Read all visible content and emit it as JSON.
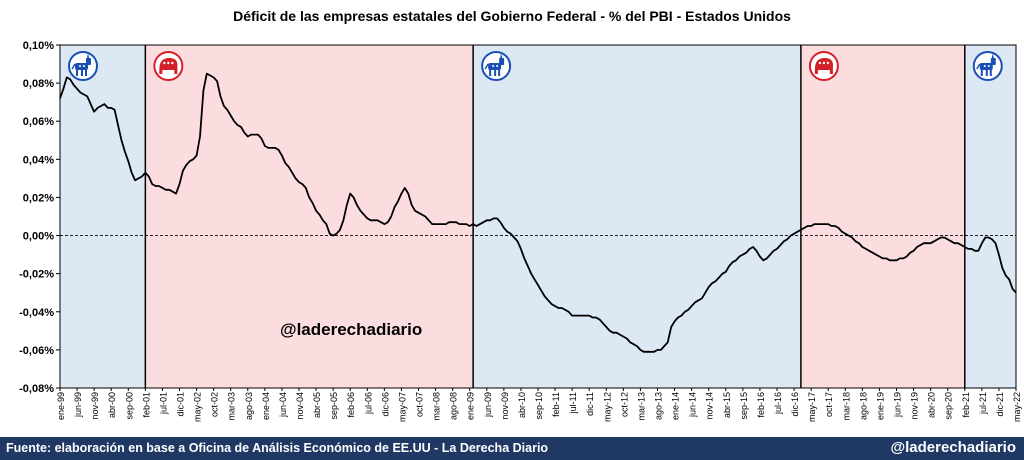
{
  "chart_data": {
    "type": "line",
    "title": "Déficit de las empresas estatales del Gobierno Federal -  % del PBI - Estados Unidos",
    "ylim": [
      -0.08,
      0.1
    ],
    "y_ticks": [
      "0,10%",
      "0,08%",
      "0,06%",
      "0,04%",
      "0,02%",
      "0,00%",
      "-0,02%",
      "-0,04%",
      "-0,06%",
      "-0,08%"
    ],
    "x_tick_labels": [
      "ene-99",
      "jun-99",
      "nov-99",
      "abr-00",
      "sep-00",
      "feb-01",
      "jul-01",
      "dic-01",
      "may-02",
      "oct-02",
      "mar-03",
      "ago-03",
      "ene-04",
      "jun-04",
      "nov-04",
      "abr-05",
      "sep-05",
      "feb-06",
      "jul-06",
      "dic-06",
      "may-07",
      "oct-07",
      "mar-08",
      "ago-08",
      "ene-09",
      "jun-09",
      "nov-09",
      "abr-10",
      "sep-10",
      "feb-11",
      "jul-11",
      "dic-11",
      "may-12",
      "oct-12",
      "mar-13",
      "ago-13",
      "ene-14",
      "jun-14",
      "nov-14",
      "abr-15",
      "sep-15",
      "feb-16",
      "jul-16",
      "dic-16",
      "may-17",
      "oct-17",
      "mar-18",
      "ago-18",
      "ene-19",
      "jun-19",
      "nov-19",
      "abr-20",
      "sep-20",
      "feb-21",
      "jul-21",
      "dic-21",
      "may-22"
    ],
    "zero_line": "dashed",
    "periods": [
      {
        "party": "democrat",
        "color": "#dce9f5",
        "start": 0,
        "end": 25,
        "icon": "donkey-icon"
      },
      {
        "party": "republican",
        "color": "#fbdde0",
        "start": 25,
        "end": 121,
        "icon": "elephant-icon"
      },
      {
        "party": "democrat",
        "color": "#dce9f5",
        "start": 121,
        "end": 217,
        "icon": "donkey-icon"
      },
      {
        "party": "republican",
        "color": "#fbdde0",
        "start": 217,
        "end": 265,
        "icon": "elephant-icon"
      },
      {
        "party": "democrat",
        "color": "#dce9f5",
        "start": 265,
        "end": 281,
        "icon": "donkey-icon"
      }
    ],
    "series": [
      {
        "color": "#000000",
        "points": [
          [
            0,
            0.072
          ],
          [
            1,
            0.077
          ],
          [
            2,
            0.083
          ],
          [
            3,
            0.082
          ],
          [
            4,
            0.079
          ],
          [
            5,
            0.077
          ],
          [
            6,
            0.075
          ],
          [
            7,
            0.074
          ],
          [
            8,
            0.073
          ],
          [
            9,
            0.069
          ],
          [
            10,
            0.065
          ],
          [
            11,
            0.067
          ],
          [
            12,
            0.068
          ],
          [
            13,
            0.069
          ],
          [
            14,
            0.067
          ],
          [
            15,
            0.067
          ],
          [
            16,
            0.066
          ],
          [
            17,
            0.058
          ],
          [
            18,
            0.05
          ],
          [
            19,
            0.044
          ],
          [
            20,
            0.039
          ],
          [
            21,
            0.033
          ],
          [
            22,
            0.029
          ],
          [
            23,
            0.03
          ],
          [
            24,
            0.031
          ],
          [
            25,
            0.033
          ],
          [
            26,
            0.031
          ],
          [
            27,
            0.027
          ],
          [
            28,
            0.026
          ],
          [
            29,
            0.026
          ],
          [
            30,
            0.025
          ],
          [
            31,
            0.024
          ],
          [
            32,
            0.024
          ],
          [
            33,
            0.023
          ],
          [
            34,
            0.022
          ],
          [
            35,
            0.027
          ],
          [
            36,
            0.034
          ],
          [
            37,
            0.037
          ],
          [
            38,
            0.039
          ],
          [
            39,
            0.04
          ],
          [
            40,
            0.042
          ],
          [
            41,
            0.052
          ],
          [
            42,
            0.076
          ],
          [
            43,
            0.085
          ],
          [
            44,
            0.084
          ],
          [
            45,
            0.083
          ],
          [
            46,
            0.081
          ],
          [
            47,
            0.073
          ],
          [
            48,
            0.068
          ],
          [
            49,
            0.066
          ],
          [
            50,
            0.063
          ],
          [
            51,
            0.06
          ],
          [
            52,
            0.058
          ],
          [
            53,
            0.057
          ],
          [
            54,
            0.054
          ],
          [
            55,
            0.052
          ],
          [
            56,
            0.053
          ],
          [
            57,
            0.053
          ],
          [
            58,
            0.053
          ],
          [
            59,
            0.051
          ],
          [
            60,
            0.047
          ],
          [
            61,
            0.046
          ],
          [
            62,
            0.046
          ],
          [
            63,
            0.046
          ],
          [
            64,
            0.045
          ],
          [
            65,
            0.042
          ],
          [
            66,
            0.038
          ],
          [
            67,
            0.036
          ],
          [
            68,
            0.033
          ],
          [
            69,
            0.03
          ],
          [
            70,
            0.028
          ],
          [
            71,
            0.027
          ],
          [
            72,
            0.025
          ],
          [
            73,
            0.02
          ],
          [
            74,
            0.017
          ],
          [
            75,
            0.013
          ],
          [
            76,
            0.011
          ],
          [
            77,
            0.008
          ],
          [
            78,
            0.006
          ],
          [
            79,
            0.001
          ],
          [
            80,
            0.0
          ],
          [
            81,
            0.001
          ],
          [
            82,
            0.003
          ],
          [
            83,
            0.008
          ],
          [
            84,
            0.016
          ],
          [
            85,
            0.022
          ],
          [
            86,
            0.02
          ],
          [
            87,
            0.016
          ],
          [
            88,
            0.013
          ],
          [
            89,
            0.011
          ],
          [
            90,
            0.009
          ],
          [
            91,
            0.008
          ],
          [
            92,
            0.008
          ],
          [
            93,
            0.008
          ],
          [
            94,
            0.007
          ],
          [
            95,
            0.006
          ],
          [
            96,
            0.007
          ],
          [
            97,
            0.01
          ],
          [
            98,
            0.015
          ],
          [
            99,
            0.018
          ],
          [
            100,
            0.022
          ],
          [
            101,
            0.025
          ],
          [
            102,
            0.022
          ],
          [
            103,
            0.016
          ],
          [
            104,
            0.013
          ],
          [
            105,
            0.012
          ],
          [
            106,
            0.011
          ],
          [
            107,
            0.01
          ],
          [
            108,
            0.008
          ],
          [
            109,
            0.006
          ],
          [
            110,
            0.006
          ],
          [
            111,
            0.006
          ],
          [
            112,
            0.006
          ],
          [
            113,
            0.006
          ],
          [
            114,
            0.007
          ],
          [
            115,
            0.007
          ],
          [
            116,
            0.007
          ],
          [
            117,
            0.006
          ],
          [
            118,
            0.006
          ],
          [
            119,
            0.006
          ],
          [
            120,
            0.005
          ],
          [
            121,
            0.006
          ],
          [
            122,
            0.005
          ],
          [
            123,
            0.006
          ],
          [
            124,
            0.007
          ],
          [
            125,
            0.008
          ],
          [
            126,
            0.008
          ],
          [
            127,
            0.009
          ],
          [
            128,
            0.009
          ],
          [
            129,
            0.007
          ],
          [
            130,
            0.004
          ],
          [
            131,
            0.002
          ],
          [
            132,
            0.001
          ],
          [
            133,
            -0.001
          ],
          [
            134,
            -0.003
          ],
          [
            135,
            -0.007
          ],
          [
            136,
            -0.012
          ],
          [
            137,
            -0.016
          ],
          [
            138,
            -0.02
          ],
          [
            139,
            -0.023
          ],
          [
            140,
            -0.026
          ],
          [
            141,
            -0.029
          ],
          [
            142,
            -0.032
          ],
          [
            143,
            -0.034
          ],
          [
            144,
            -0.036
          ],
          [
            145,
            -0.037
          ],
          [
            146,
            -0.038
          ],
          [
            147,
            -0.038
          ],
          [
            148,
            -0.039
          ],
          [
            149,
            -0.04
          ],
          [
            150,
            -0.042
          ],
          [
            151,
            -0.042
          ],
          [
            152,
            -0.042
          ],
          [
            153,
            -0.042
          ],
          [
            154,
            -0.042
          ],
          [
            155,
            -0.042
          ],
          [
            156,
            -0.043
          ],
          [
            157,
            -0.043
          ],
          [
            158,
            -0.044
          ],
          [
            159,
            -0.046
          ],
          [
            160,
            -0.048
          ],
          [
            161,
            -0.05
          ],
          [
            162,
            -0.051
          ],
          [
            163,
            -0.051
          ],
          [
            164,
            -0.052
          ],
          [
            165,
            -0.053
          ],
          [
            166,
            -0.054
          ],
          [
            167,
            -0.056
          ],
          [
            168,
            -0.057
          ],
          [
            169,
            -0.058
          ],
          [
            170,
            -0.06
          ],
          [
            171,
            -0.061
          ],
          [
            172,
            -0.061
          ],
          [
            173,
            -0.061
          ],
          [
            174,
            -0.061
          ],
          [
            175,
            -0.06
          ],
          [
            176,
            -0.06
          ],
          [
            177,
            -0.058
          ],
          [
            178,
            -0.056
          ],
          [
            179,
            -0.048
          ],
          [
            180,
            -0.045
          ],
          [
            181,
            -0.043
          ],
          [
            182,
            -0.042
          ],
          [
            183,
            -0.04
          ],
          [
            184,
            -0.039
          ],
          [
            185,
            -0.037
          ],
          [
            186,
            -0.035
          ],
          [
            187,
            -0.034
          ],
          [
            188,
            -0.033
          ],
          [
            189,
            -0.03
          ],
          [
            190,
            -0.027
          ],
          [
            191,
            -0.025
          ],
          [
            192,
            -0.024
          ],
          [
            193,
            -0.022
          ],
          [
            194,
            -0.02
          ],
          [
            195,
            -0.019
          ],
          [
            196,
            -0.016
          ],
          [
            197,
            -0.014
          ],
          [
            198,
            -0.013
          ],
          [
            199,
            -0.011
          ],
          [
            200,
            -0.01
          ],
          [
            201,
            -0.009
          ],
          [
            202,
            -0.007
          ],
          [
            203,
            -0.006
          ],
          [
            204,
            -0.008
          ],
          [
            205,
            -0.011
          ],
          [
            206,
            -0.013
          ],
          [
            207,
            -0.012
          ],
          [
            208,
            -0.01
          ],
          [
            209,
            -0.008
          ],
          [
            210,
            -0.007
          ],
          [
            211,
            -0.005
          ],
          [
            212,
            -0.003
          ],
          [
            213,
            -0.002
          ],
          [
            214,
            0.0
          ],
          [
            215,
            0.001
          ],
          [
            216,
            0.002
          ],
          [
            217,
            0.003
          ],
          [
            218,
            0.004
          ],
          [
            219,
            0.005
          ],
          [
            220,
            0.005
          ],
          [
            221,
            0.006
          ],
          [
            222,
            0.006
          ],
          [
            223,
            0.006
          ],
          [
            224,
            0.006
          ],
          [
            225,
            0.006
          ],
          [
            226,
            0.005
          ],
          [
            227,
            0.005
          ],
          [
            228,
            0.004
          ],
          [
            229,
            0.002
          ],
          [
            230,
            0.001
          ],
          [
            231,
            0.0
          ],
          [
            232,
            -0.001
          ],
          [
            233,
            -0.003
          ],
          [
            234,
            -0.004
          ],
          [
            235,
            -0.006
          ],
          [
            236,
            -0.007
          ],
          [
            237,
            -0.008
          ],
          [
            238,
            -0.009
          ],
          [
            239,
            -0.01
          ],
          [
            240,
            -0.011
          ],
          [
            241,
            -0.012
          ],
          [
            242,
            -0.012
          ],
          [
            243,
            -0.013
          ],
          [
            244,
            -0.013
          ],
          [
            245,
            -0.013
          ],
          [
            246,
            -0.012
          ],
          [
            247,
            -0.012
          ],
          [
            248,
            -0.011
          ],
          [
            249,
            -0.009
          ],
          [
            250,
            -0.008
          ],
          [
            251,
            -0.006
          ],
          [
            252,
            -0.005
          ],
          [
            253,
            -0.004
          ],
          [
            254,
            -0.004
          ],
          [
            255,
            -0.004
          ],
          [
            256,
            -0.003
          ],
          [
            257,
            -0.002
          ],
          [
            258,
            -0.001
          ],
          [
            259,
            -0.001
          ],
          [
            260,
            -0.002
          ],
          [
            261,
            -0.003
          ],
          [
            262,
            -0.004
          ],
          [
            263,
            -0.004
          ],
          [
            264,
            -0.005
          ],
          [
            265,
            -0.006
          ],
          [
            266,
            -0.007
          ],
          [
            267,
            -0.007
          ],
          [
            268,
            -0.008
          ],
          [
            269,
            -0.008
          ],
          [
            270,
            -0.004
          ],
          [
            271,
            -0.001
          ],
          [
            272,
            -0.001
          ],
          [
            273,
            -0.002
          ],
          [
            274,
            -0.004
          ],
          [
            275,
            -0.01
          ],
          [
            276,
            -0.017
          ],
          [
            277,
            -0.021
          ],
          [
            278,
            -0.023
          ],
          [
            279,
            -0.028
          ],
          [
            280,
            -0.03
          ]
        ]
      }
    ]
  },
  "watermark": "@laderechadiario",
  "footer": {
    "source": "Fuente: elaboración en base a Oficina de Análisis Económico de EE.UU - La Derecha Diario",
    "brand": "@laderechadiario",
    "background": "#1f3864"
  }
}
